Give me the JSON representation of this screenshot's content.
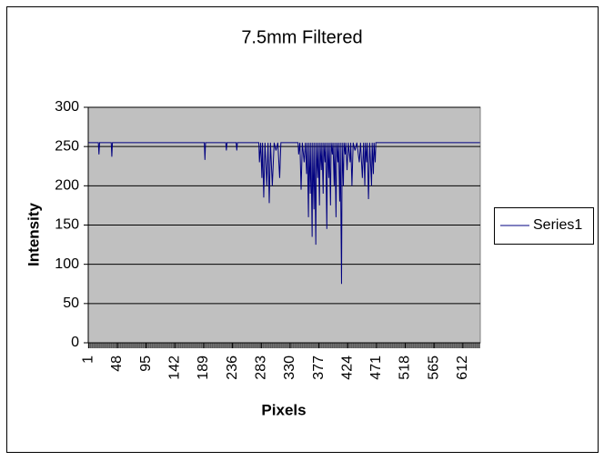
{
  "chart_data": {
    "type": "line",
    "title": "7.5mm Filtered",
    "x_label": "Pixels",
    "y_label": "Intensity",
    "x": [
      1,
      17,
      18,
      19,
      38,
      39,
      40,
      190,
      191,
      192,
      225,
      226,
      227,
      242,
      243,
      244,
      279,
      280,
      282,
      284,
      285,
      287,
      289,
      292,
      294,
      296,
      298,
      301,
      304,
      307,
      310,
      313,
      315,
      343,
      344,
      346,
      348,
      350,
      353,
      355,
      357,
      358,
      360,
      361,
      363,
      364,
      366,
      367,
      369,
      370,
      372,
      373,
      375,
      376,
      378,
      379,
      381,
      382,
      384,
      385,
      387,
      388,
      390,
      391,
      393,
      394,
      396,
      397,
      399,
      400,
      402,
      403,
      405,
      406,
      408,
      409,
      411,
      412,
      414,
      415,
      417,
      418,
      420,
      421,
      423,
      425,
      428,
      429,
      431,
      433,
      436,
      439,
      443,
      445,
      448,
      450,
      452,
      453,
      455,
      456,
      458,
      460,
      463,
      464,
      466,
      467,
      469,
      470,
      640
    ],
    "series": [
      {
        "name": "Series1",
        "color": "#000080",
        "values": [
          255,
          255,
          240,
          255,
          255,
          237,
          255,
          255,
          233,
          255,
          255,
          245,
          255,
          255,
          245,
          255,
          255,
          230,
          255,
          210,
          255,
          185,
          255,
          200,
          255,
          178,
          255,
          200,
          255,
          245,
          255,
          210,
          255,
          255,
          240,
          255,
          195,
          255,
          230,
          255,
          215,
          255,
          160,
          255,
          190,
          255,
          135,
          255,
          170,
          255,
          125,
          255,
          210,
          255,
          175,
          255,
          220,
          255,
          190,
          255,
          230,
          255,
          145,
          255,
          210,
          255,
          175,
          255,
          240,
          255,
          200,
          255,
          160,
          255,
          230,
          255,
          180,
          255,
          75,
          255,
          200,
          255,
          240,
          255,
          220,
          255,
          230,
          255,
          200,
          255,
          245,
          255,
          230,
          255,
          210,
          255,
          200,
          255,
          230,
          255,
          183,
          255,
          200,
          255,
          215,
          255,
          230,
          255,
          255
        ]
      }
    ],
    "xlim": [
      0.5,
      640.5
    ],
    "xticks": [
      1,
      48,
      95,
      142,
      189,
      236,
      283,
      330,
      377,
      424,
      471,
      518,
      565,
      612
    ],
    "ylim": [
      0,
      300
    ],
    "yticks": [
      0,
      50,
      100,
      150,
      200,
      250,
      300
    ],
    "grid": true,
    "legend": "right"
  }
}
